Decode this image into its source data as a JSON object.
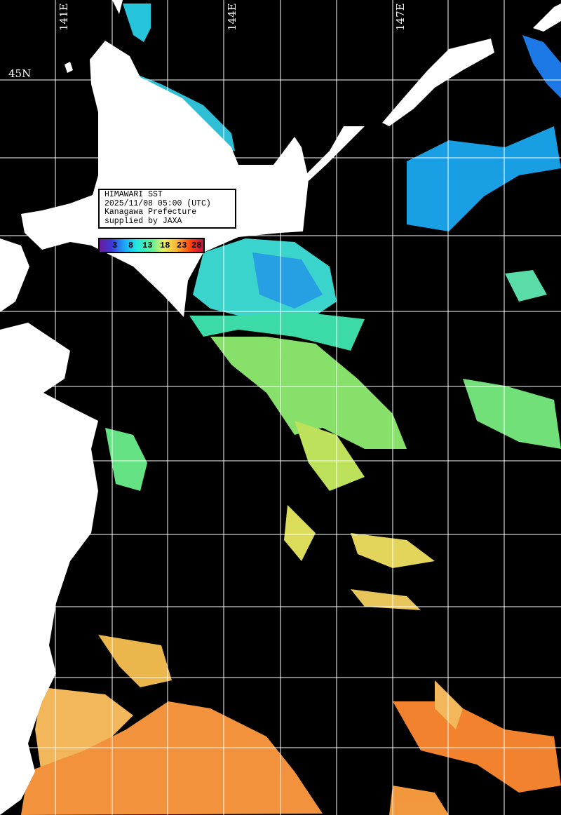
{
  "info_box": {
    "line1": "HIMAWARI SST",
    "line2": "2025/11/08 05:00 (UTC)",
    "line3": "Kanagawa Prefecture",
    "line4": "supplied by JAXA"
  },
  "colorbar": {
    "ticks": [
      "3",
      "8",
      "13",
      "18",
      "23",
      "28"
    ],
    "colors": [
      "#6a1b9a",
      "#3b3bd8",
      "#1ab0ff",
      "#22e8e0",
      "#5cf09a",
      "#e8f060",
      "#ffb030",
      "#ff4010",
      "#c0104a"
    ]
  },
  "grid": {
    "lon_labels": [
      "141E",
      "144E",
      "147E"
    ],
    "lat_labels": [
      "45N"
    ]
  },
  "colors": {
    "land": "#ffffff",
    "no_data": "#000000",
    "grid": "#ffffff"
  }
}
